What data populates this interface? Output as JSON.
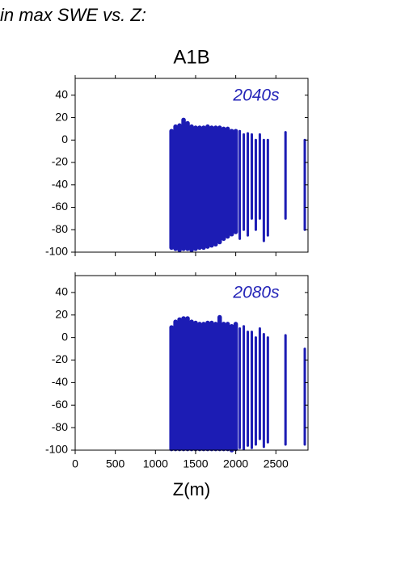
{
  "page_title": "in max SWE vs. Z:",
  "chart_data": [
    {
      "type": "range",
      "title": "A1B",
      "annotation": "2040s",
      "color": "#1c1cb4",
      "annotation_color": "#2424b8",
      "xlim": [
        0,
        2900
      ],
      "ylim": [
        -100,
        55
      ],
      "xticks": [
        0,
        500,
        1000,
        1500,
        2000,
        2500
      ],
      "xtick_labels": false,
      "yticks": [
        -100,
        -80,
        -60,
        -40,
        -20,
        0,
        20,
        40
      ],
      "x": [
        1200,
        1250,
        1300,
        1350,
        1400,
        1450,
        1500,
        1550,
        1600,
        1650,
        1700,
        1750,
        1800,
        1850,
        1900,
        1950,
        2000,
        2050,
        2100,
        2150,
        2200,
        2250,
        2300,
        2350,
        2400,
        2620,
        2860
      ],
      "low": [
        -96,
        -97,
        -98,
        -97,
        -97,
        -98,
        -97,
        -96,
        -96,
        -95,
        -94,
        -93,
        -91,
        -88,
        -86,
        -84,
        -82,
        -88,
        -80,
        -85,
        -70,
        -80,
        -70,
        -90,
        -85,
        -70,
        -80
      ],
      "high": [
        8,
        12,
        13,
        18,
        15,
        12,
        11,
        11,
        11,
        12,
        11,
        11,
        11,
        10,
        10,
        8,
        8,
        8,
        5,
        6,
        5,
        0,
        5,
        0,
        0,
        7,
        0
      ]
    },
    {
      "type": "range",
      "annotation": "2080s",
      "xlabel": "Z(m)",
      "color": "#1c1cb4",
      "annotation_color": "#2424b8",
      "xlim": [
        0,
        2900
      ],
      "ylim": [
        -100,
        55
      ],
      "xticks": [
        0,
        500,
        1000,
        1500,
        2000,
        2500
      ],
      "xtick_labels": true,
      "yticks": [
        -100,
        -80,
        -60,
        -40,
        -20,
        0,
        20,
        40
      ],
      "x": [
        1200,
        1250,
        1300,
        1350,
        1400,
        1450,
        1500,
        1550,
        1600,
        1650,
        1700,
        1750,
        1800,
        1850,
        1900,
        1950,
        2000,
        2050,
        2100,
        2150,
        2200,
        2250,
        2300,
        2350,
        2400,
        2620,
        2860
      ],
      "low": [
        -99,
        -99,
        -99,
        -99,
        -99,
        -99,
        -99,
        -99,
        -99,
        -99,
        -99,
        -99,
        -99,
        -99,
        -99,
        -100,
        -99,
        -98,
        -99,
        -96,
        -98,
        -95,
        -90,
        -97,
        -93,
        -95,
        -95
      ],
      "high": [
        9,
        14,
        16,
        17,
        17,
        14,
        13,
        12,
        12,
        13,
        13,
        12,
        18,
        12,
        12,
        10,
        12,
        8,
        10,
        5,
        5,
        0,
        8,
        3,
        0,
        2,
        -10
      ]
    }
  ]
}
